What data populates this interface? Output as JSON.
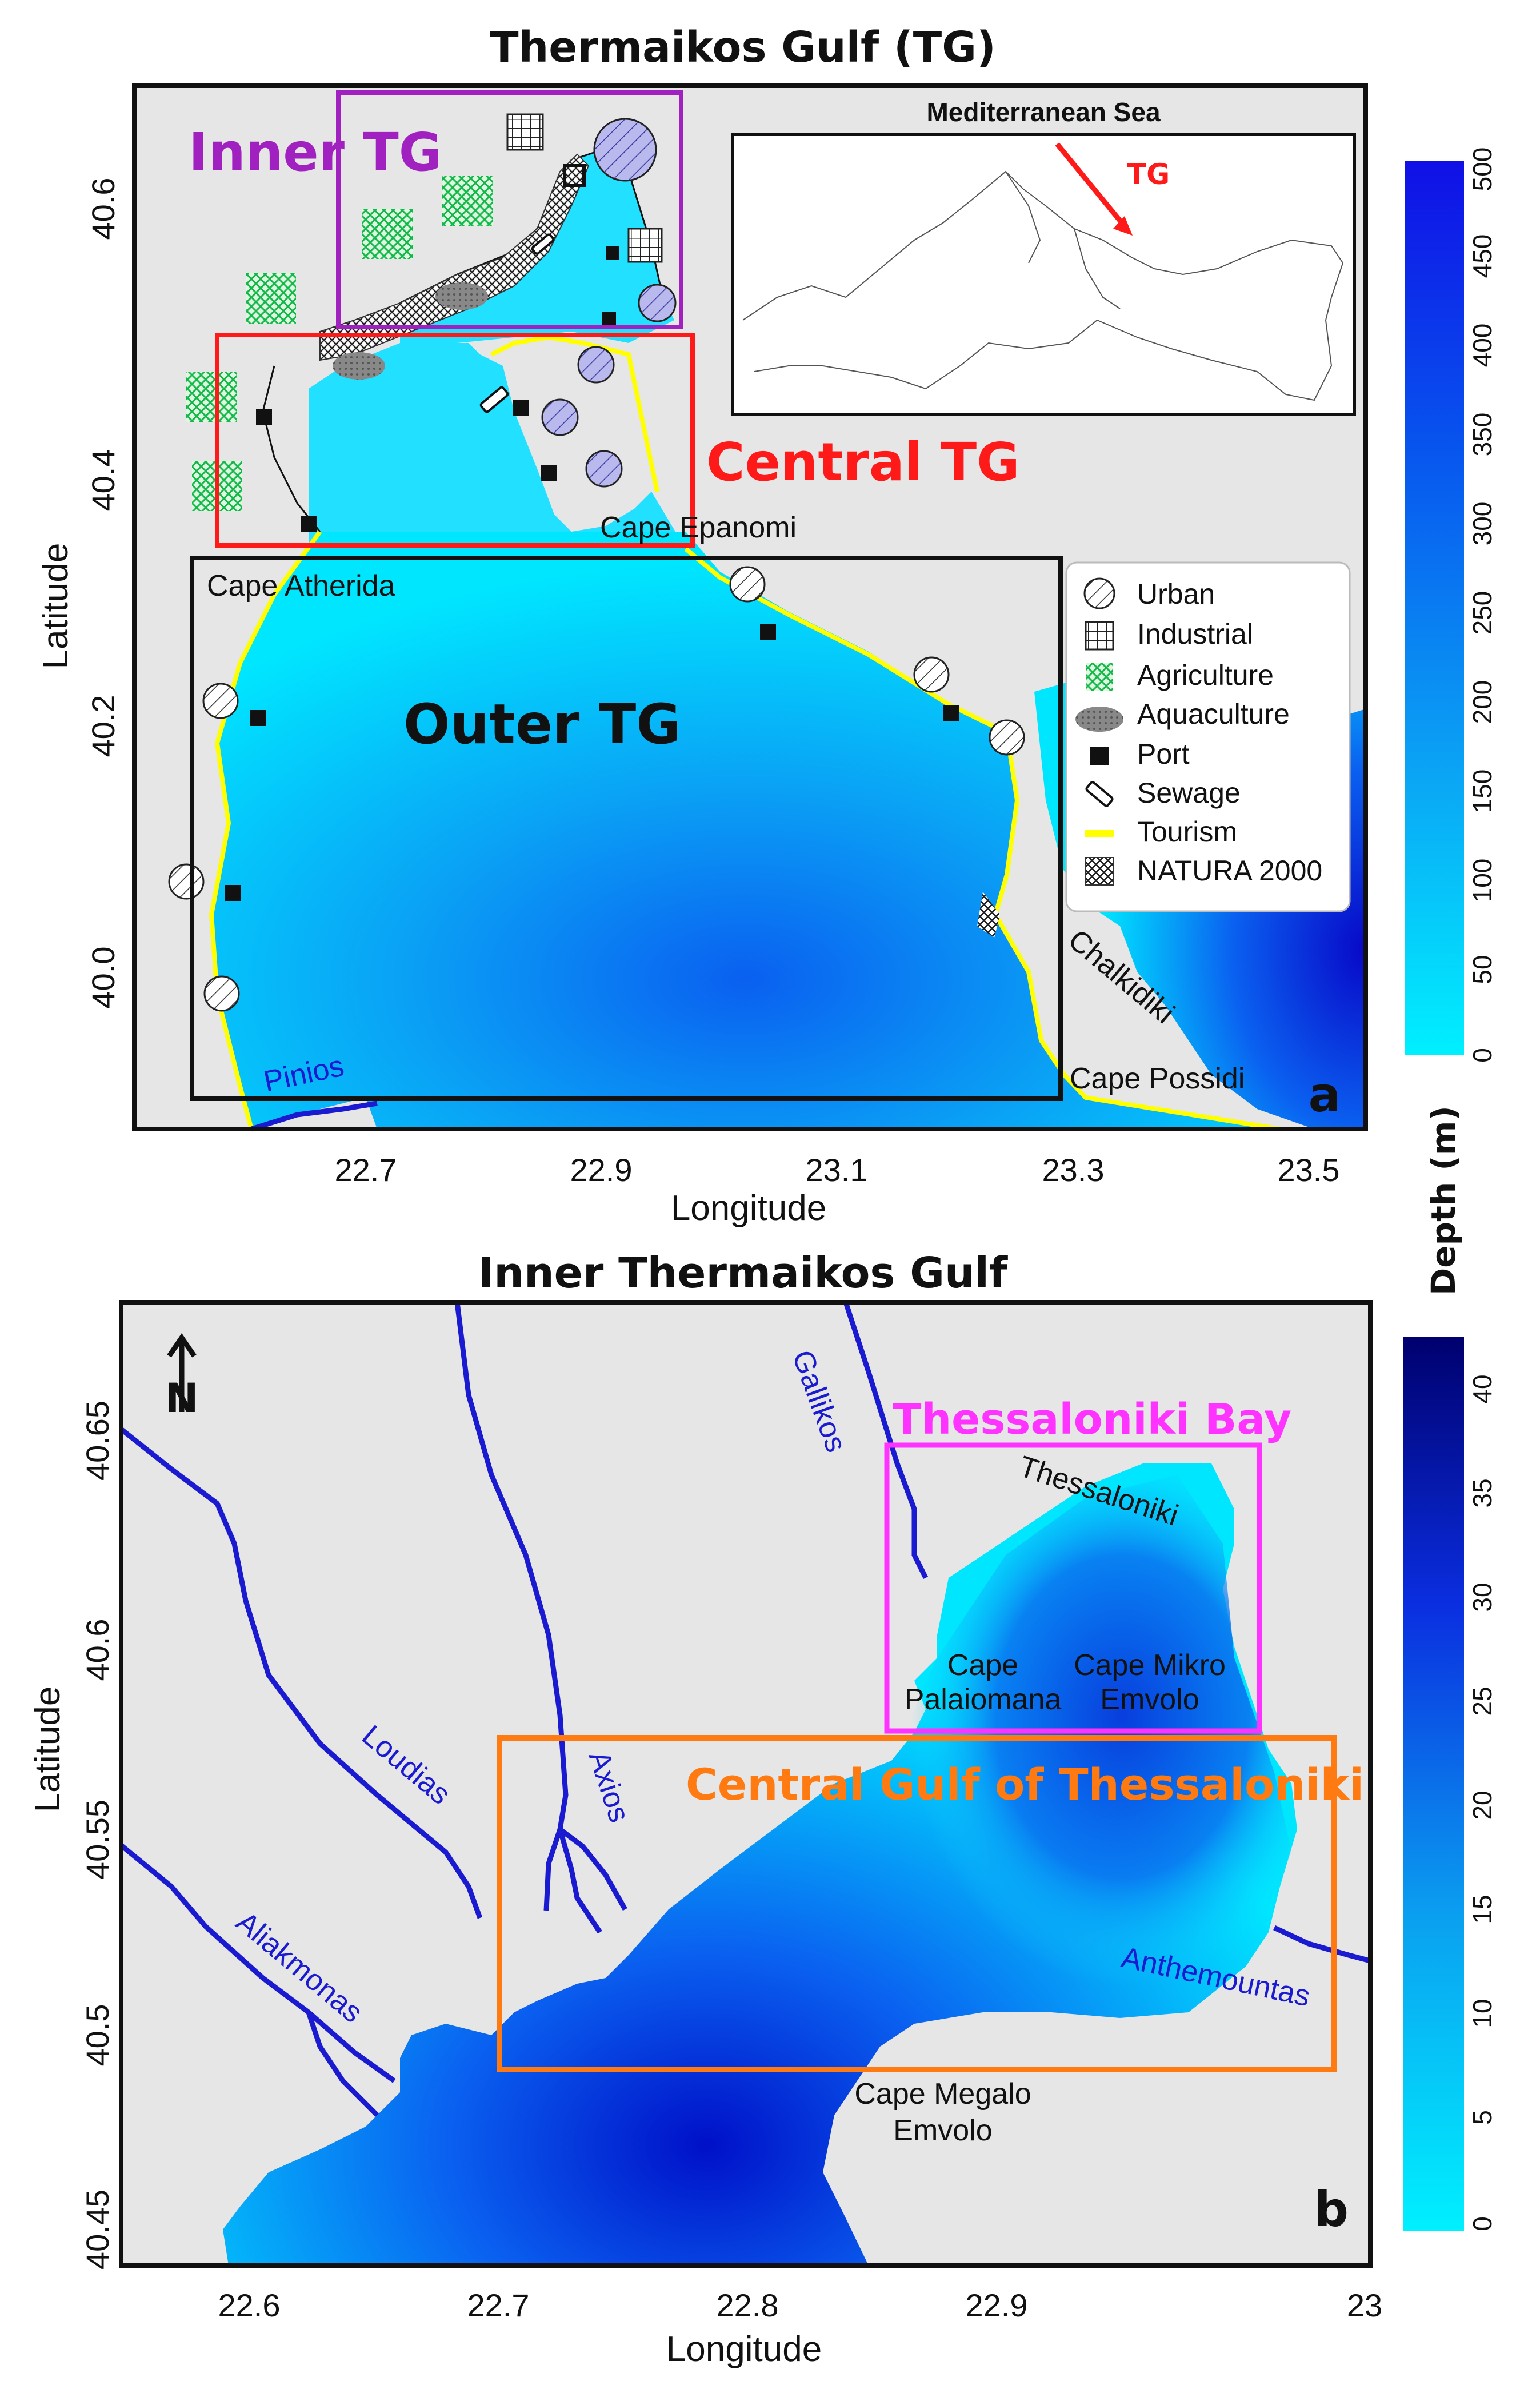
{
  "panel_a": {
    "title": "Thermaikos Gulf (TG)",
    "xlabel": "Longitude",
    "ylabel": "Latitude",
    "x_ticks": [
      "22.7",
      "22.9",
      "23.1",
      "23.3",
      "23.5"
    ],
    "y_ticks": [
      "40.6",
      "40.4",
      "40.2",
      "40.0"
    ],
    "panel_letter": "a",
    "regions": {
      "inner": "Inner TG",
      "central": "Central TG",
      "outer": "Outer TG"
    },
    "places": {
      "cape_epanomi": "Cape Epanomi",
      "cape_atherida": "Cape Atherida",
      "chalkidiki": "Chalkidiki",
      "cape_possidi": "Cape Possidi"
    },
    "rivers": {
      "pinios": "Pinios"
    },
    "inset": {
      "title": "Mediterranean Sea",
      "pointer": "TG"
    },
    "legend": [
      {
        "label": "Urban",
        "icon": "urban-icon"
      },
      {
        "label": "Industrial",
        "icon": "industrial-icon"
      },
      {
        "label": "Agriculture",
        "icon": "agriculture-icon"
      },
      {
        "label": "Aquaculture",
        "icon": "aquaculture-icon"
      },
      {
        "label": "Port",
        "icon": "port-icon"
      },
      {
        "label": "Sewage",
        "icon": "sewage-icon"
      },
      {
        "label": "Tourism",
        "icon": "tourism-icon"
      },
      {
        "label": "NATURA 2000",
        "icon": "natura-icon"
      }
    ],
    "colorbar": {
      "label": "Depth (m)",
      "ticks": [
        "500",
        "450",
        "400",
        "350",
        "300",
        "250",
        "200",
        "150",
        "100",
        "50",
        "0"
      ]
    }
  },
  "panel_b": {
    "title": "Inner Thermaikos Gulf",
    "xlabel": "Longitude",
    "ylabel": "Latitude",
    "x_ticks": [
      "22.6",
      "22.7",
      "22.8",
      "22.9",
      "23"
    ],
    "y_ticks": [
      "40.65",
      "40.6",
      "40.55",
      "40.5",
      "40.45"
    ],
    "panel_letter": "b",
    "north_letter": "N",
    "boxes": {
      "thessaloniki_bay": "Thessaloniki Bay",
      "central_gulf": "Central Gulf of Thessaloniki"
    },
    "places": {
      "thessaloniki": "Thessaloniki",
      "cape_palaiomana_1": "Cape",
      "cape_palaiomana_2": "Palaiomana",
      "cape_mikro_1": "Cape Mikro",
      "cape_mikro_2": "Emvolo",
      "cape_megalo_1": "Cape Megalo",
      "cape_megalo_2": "Emvolo"
    },
    "rivers": {
      "gallikos": "Gallikos",
      "axios": "Axios",
      "loudias": "Loudias",
      "aliakmonas": "Aliakmonas",
      "anthemountas": "Anthemountas"
    },
    "colorbar": {
      "ticks": [
        "40",
        "35",
        "30",
        "25",
        "20",
        "15",
        "10",
        "5",
        "0"
      ]
    }
  },
  "colors": {
    "land": "#e6e6e6",
    "shallow": "#00f0ff",
    "deep_a": "#1010e6",
    "deep_b": "#00007a",
    "inner_box": "#a020c0",
    "central_box": "#ff1a1a",
    "bay_box": "#ff33ff",
    "central_gulf_box": "#ff7a10",
    "river": "#1a1ad0",
    "tourism": "#ffff00"
  }
}
